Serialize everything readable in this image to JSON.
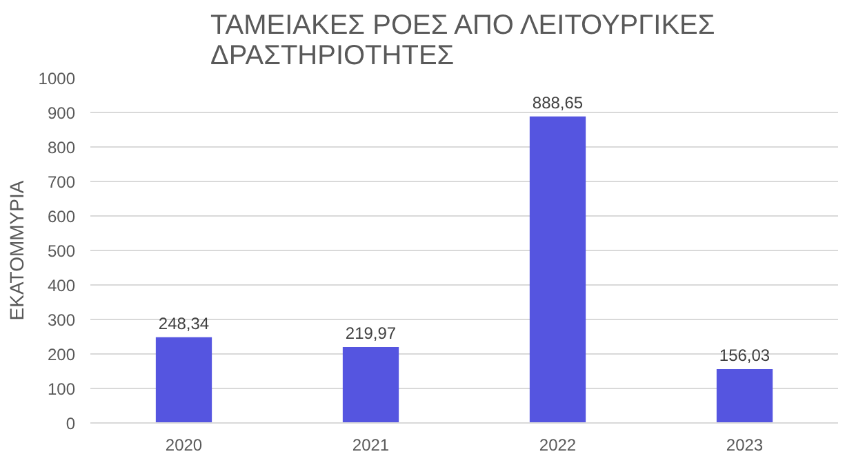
{
  "chart_data": {
    "type": "bar",
    "title": "ΤΑΜΕΙΑΚΕΣ ΡΟΕΣ ΑΠΟ ΛΕΙΤΟΥΡΓΙΚΕΣ ΔΡΑΣΤΗΡΙΟΤΗΤΕΣ",
    "ylabel": "ΕΚΑΤΟΜΜΥΡΙΑ",
    "categories": [
      "2020",
      "2021",
      "2022",
      "2023"
    ],
    "values": [
      248.34,
      219.97,
      888.65,
      156.03
    ],
    "value_labels": [
      "248,34",
      "219,97",
      "888,65",
      "156,03"
    ],
    "color": "#5555e0",
    "ylim": [
      0,
      1000
    ],
    "yticks": [
      0,
      100,
      200,
      300,
      400,
      500,
      600,
      700,
      800,
      900,
      1000
    ],
    "grid": "y"
  }
}
